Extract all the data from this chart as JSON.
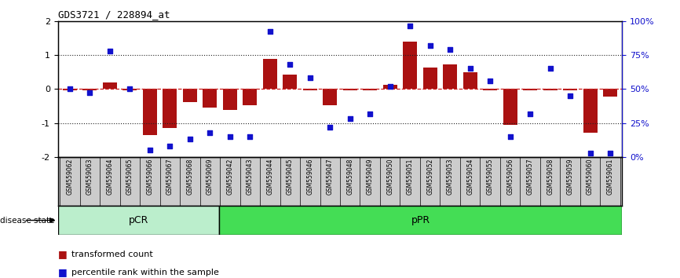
{
  "title": "GDS3721 / 228894_at",
  "samples": [
    "GSM559062",
    "GSM559063",
    "GSM559064",
    "GSM559065",
    "GSM559066",
    "GSM559067",
    "GSM559068",
    "GSM559069",
    "GSM559042",
    "GSM559043",
    "GSM559044",
    "GSM559045",
    "GSM559046",
    "GSM559047",
    "GSM559048",
    "GSM559049",
    "GSM559050",
    "GSM559051",
    "GSM559052",
    "GSM559053",
    "GSM559054",
    "GSM559055",
    "GSM559056",
    "GSM559057",
    "GSM559058",
    "GSM559059",
    "GSM559060",
    "GSM559061"
  ],
  "bar_values": [
    -0.04,
    -0.05,
    0.2,
    -0.05,
    -1.35,
    -1.15,
    -0.38,
    -0.55,
    -0.62,
    -0.48,
    0.88,
    0.42,
    -0.04,
    -0.48,
    -0.04,
    -0.04,
    0.12,
    1.38,
    0.62,
    0.72,
    0.48,
    -0.04,
    -1.05,
    -0.04,
    -0.04,
    -0.04,
    -1.28,
    -0.22
  ],
  "blue_values": [
    50,
    47,
    78,
    50,
    5,
    8,
    13,
    18,
    15,
    15,
    92,
    68,
    58,
    22,
    28,
    32,
    52,
    96,
    82,
    79,
    65,
    56,
    15,
    32,
    65,
    45,
    3,
    3
  ],
  "pcr_count": 8,
  "ppr_count": 20,
  "ylim": [
    -2,
    2
  ],
  "y2lim": [
    0,
    100
  ],
  "yticks": [
    -2,
    -1,
    0,
    1,
    2
  ],
  "y2ticks": [
    0,
    25,
    50,
    75,
    100
  ],
  "y2ticklabels": [
    "0%",
    "25%",
    "50%",
    "75%",
    "100%"
  ],
  "bar_color": "#aa1111",
  "blue_color": "#1111cc",
  "pcr_color": "#bbeecc",
  "ppr_color": "#44dd55",
  "label_bg_color": "#cccccc",
  "zero_line_color": "#cc2222",
  "dot_line_color": "#222222"
}
